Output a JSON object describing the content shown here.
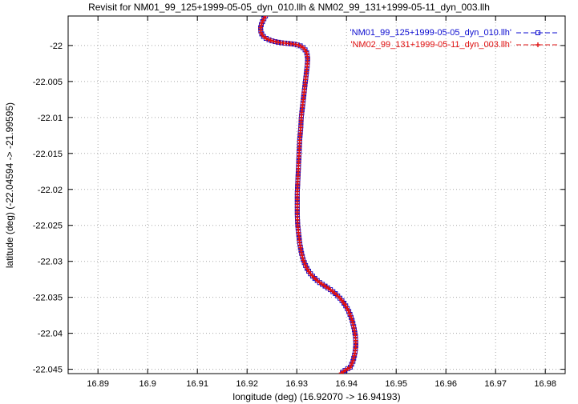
{
  "chart_data": {
    "type": "line",
    "title": "Revisit for NM01_99_125+1999-05-05_dyn_010.llh & NM02_99_131+1999-05-11_dyn_003.llh",
    "xlabel": "longitude (deg) (16.92070 -> 16.94193)",
    "ylabel": "latitude (deg) (-22.04594 -> -21.99595)",
    "xlim": [
      16.884,
      16.984
    ],
    "ylim": [
      -22.0456,
      -21.9959
    ],
    "grid": true,
    "grid_style": "dotted",
    "legend_position": "top-right-inside",
    "colors": {
      "grid": "#a8a8a8",
      "border": "#000000",
      "background": "#ffffff"
    },
    "xticks": [
      {
        "v": 16.89,
        "t": "16.89"
      },
      {
        "v": 16.9,
        "t": "16.9"
      },
      {
        "v": 16.91,
        "t": "16.91"
      },
      {
        "v": 16.92,
        "t": "16.92"
      },
      {
        "v": 16.93,
        "t": "16.93"
      },
      {
        "v": 16.94,
        "t": "16.94"
      },
      {
        "v": 16.95,
        "t": "16.95"
      },
      {
        "v": 16.96,
        "t": "16.96"
      },
      {
        "v": 16.97,
        "t": "16.97"
      },
      {
        "v": 16.98,
        "t": "16.98"
      }
    ],
    "yticks": [
      {
        "v": -22.0,
        "t": "-22"
      },
      {
        "v": -22.005,
        "t": "-22.005"
      },
      {
        "v": -22.01,
        "t": "-22.01"
      },
      {
        "v": -22.015,
        "t": "-22.015"
      },
      {
        "v": -22.02,
        "t": "-22.02"
      },
      {
        "v": -22.025,
        "t": "-22.025"
      },
      {
        "v": -22.03,
        "t": "-22.03"
      },
      {
        "v": -22.035,
        "t": "-22.035"
      },
      {
        "v": -22.04,
        "t": "-22.04"
      },
      {
        "v": -22.045,
        "t": "-22.045"
      }
    ],
    "series": [
      {
        "name": "'NM01_99_125+1999-05-05_dyn_010.llh'",
        "color": "#0b0bd0",
        "marker": "square",
        "points": [
          [
            16.9237,
            -21.9959
          ],
          [
            16.9233,
            -21.9964
          ],
          [
            16.9229,
            -21.997
          ],
          [
            16.9227,
            -21.9976
          ],
          [
            16.9228,
            -21.9982
          ],
          [
            16.9232,
            -21.9987
          ],
          [
            16.924,
            -21.9991
          ],
          [
            16.9252,
            -21.9994
          ],
          [
            16.9266,
            -21.9996
          ],
          [
            16.928,
            -21.9997
          ],
          [
            16.9294,
            -21.9998
          ],
          [
            16.9306,
            -22.0
          ],
          [
            16.9315,
            -22.0004
          ],
          [
            16.932,
            -22.001
          ],
          [
            16.9322,
            -22.0018
          ],
          [
            16.9321,
            -22.0028
          ],
          [
            16.9319,
            -22.004
          ],
          [
            16.9317,
            -22.0052
          ],
          [
            16.9315,
            -22.0064
          ],
          [
            16.9313,
            -22.0076
          ],
          [
            16.9311,
            -22.0088
          ],
          [
            16.9309,
            -22.01
          ],
          [
            16.9308,
            -22.0115
          ],
          [
            16.9306,
            -22.013
          ],
          [
            16.9305,
            -22.0145
          ],
          [
            16.9304,
            -22.016
          ],
          [
            16.9303,
            -22.0175
          ],
          [
            16.9302,
            -22.019
          ],
          [
            16.9301,
            -22.0205
          ],
          [
            16.9301,
            -22.022
          ],
          [
            16.9301,
            -22.0235
          ],
          [
            16.9302,
            -22.025
          ],
          [
            16.9304,
            -22.0263
          ],
          [
            16.9306,
            -22.0275
          ],
          [
            16.9309,
            -22.0287
          ],
          [
            16.9313,
            -22.0298
          ],
          [
            16.9319,
            -22.0308
          ],
          [
            16.9326,
            -22.0316
          ],
          [
            16.9335,
            -22.0323
          ],
          [
            16.9345,
            -22.0329
          ],
          [
            16.9356,
            -22.0334
          ],
          [
            16.9367,
            -22.0339
          ],
          [
            16.9378,
            -22.0345
          ],
          [
            16.9388,
            -22.0352
          ],
          [
            16.9397,
            -22.036
          ],
          [
            16.9405,
            -22.037
          ],
          [
            16.9411,
            -22.0381
          ],
          [
            16.9415,
            -22.0392
          ],
          [
            16.9418,
            -22.0404
          ],
          [
            16.9419,
            -22.0416
          ],
          [
            16.9417,
            -22.0428
          ],
          [
            16.9413,
            -22.0439
          ],
          [
            16.9407,
            -22.0448
          ],
          [
            16.94,
            -22.045
          ],
          [
            16.9393,
            -22.0454
          ],
          [
            16.9387,
            -22.0456
          ]
        ]
      },
      {
        "name": "'NM02_99_131+1999-05-11_dyn_003.llh'",
        "color": "#e01010",
        "marker": "plus",
        "points": [
          [
            16.9237,
            -21.9959
          ],
          [
            16.9233,
            -21.9964
          ],
          [
            16.9229,
            -21.997
          ],
          [
            16.9227,
            -21.9976
          ],
          [
            16.9228,
            -21.9982
          ],
          [
            16.9232,
            -21.9987
          ],
          [
            16.924,
            -21.9991
          ],
          [
            16.9252,
            -21.9994
          ],
          [
            16.9266,
            -21.9996
          ],
          [
            16.928,
            -21.9997
          ],
          [
            16.9294,
            -21.9998
          ],
          [
            16.9306,
            -22.0
          ],
          [
            16.9315,
            -22.0004
          ],
          [
            16.932,
            -22.001
          ],
          [
            16.9322,
            -22.0018
          ],
          [
            16.9321,
            -22.0028
          ],
          [
            16.9319,
            -22.004
          ],
          [
            16.9317,
            -22.0052
          ],
          [
            16.9315,
            -22.0064
          ],
          [
            16.9313,
            -22.0076
          ],
          [
            16.9311,
            -22.0088
          ],
          [
            16.9309,
            -22.01
          ],
          [
            16.9308,
            -22.0115
          ],
          [
            16.9306,
            -22.013
          ],
          [
            16.9305,
            -22.0145
          ],
          [
            16.9304,
            -22.016
          ],
          [
            16.9303,
            -22.0175
          ],
          [
            16.9302,
            -22.019
          ],
          [
            16.9301,
            -22.0205
          ],
          [
            16.9301,
            -22.022
          ],
          [
            16.9301,
            -22.0235
          ],
          [
            16.9302,
            -22.025
          ],
          [
            16.9304,
            -22.0263
          ],
          [
            16.9306,
            -22.0275
          ],
          [
            16.9309,
            -22.0287
          ],
          [
            16.9313,
            -22.0298
          ],
          [
            16.9319,
            -22.0308
          ],
          [
            16.9326,
            -22.0316
          ],
          [
            16.9335,
            -22.0323
          ],
          [
            16.9345,
            -22.0329
          ],
          [
            16.9356,
            -22.0334
          ],
          [
            16.9367,
            -22.0339
          ],
          [
            16.9378,
            -22.0345
          ],
          [
            16.9388,
            -22.0352
          ],
          [
            16.9397,
            -22.036
          ],
          [
            16.9405,
            -22.037
          ],
          [
            16.9411,
            -22.0381
          ],
          [
            16.9415,
            -22.0392
          ],
          [
            16.9418,
            -22.0404
          ],
          [
            16.9419,
            -22.0416
          ],
          [
            16.9417,
            -22.0428
          ],
          [
            16.9413,
            -22.0439
          ],
          [
            16.9407,
            -22.0448
          ],
          [
            16.94,
            -22.045
          ],
          [
            16.9393,
            -22.0454
          ],
          [
            16.9387,
            -22.0456
          ]
        ]
      }
    ]
  }
}
